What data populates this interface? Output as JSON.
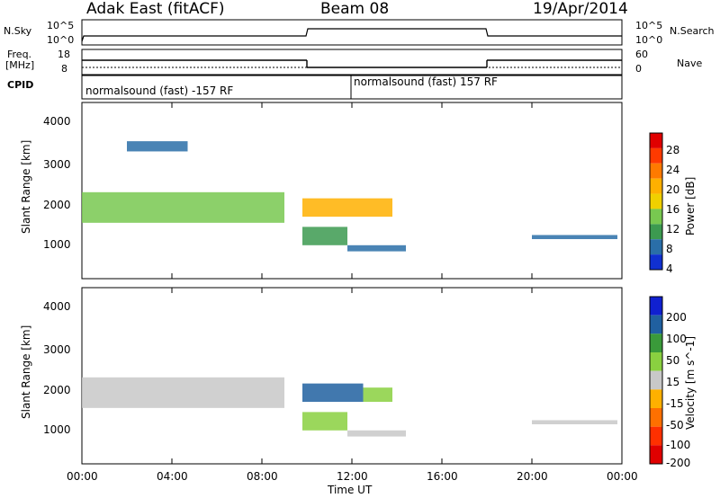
{
  "header": {
    "radar": "Adak East (fitACF)",
    "beam": "Beam 08",
    "date": "19/Apr/2014"
  },
  "top_panels": {
    "nsky_label": "N.Sky",
    "nsky_ticks": [
      "10^5",
      "10^0"
    ],
    "nsearch_label": "N.Search",
    "freq_label_1": "Freq.",
    "freq_label_2": "[MHz]",
    "freq_ticks": [
      "18",
      "8"
    ],
    "nave_label": "Nave",
    "nave_ticks": [
      "60",
      "0"
    ],
    "cpid_label": "CPID",
    "cpid_segment_1": "normalsound (fast) -157 RF",
    "cpid_segment_2": "normalsound (fast) 157 RF"
  },
  "axes": {
    "ylabel": "Slant Range [km]",
    "xlabel": "Time UT",
    "yticks": [
      "4000",
      "3000",
      "2000",
      "1000"
    ],
    "xticks": [
      "00:00",
      "04:00",
      "08:00",
      "12:00",
      "16:00",
      "20:00",
      "00:00"
    ]
  },
  "power_scale": {
    "label": "Power [dB]",
    "ticks": [
      "28",
      "24",
      "20",
      "16",
      "12",
      "8",
      "4"
    ],
    "colors": [
      "#e00000",
      "#ff3a00",
      "#ff7a00",
      "#ffb000",
      "#f0d000",
      "#78c850",
      "#3c9a50",
      "#2a6ea8",
      "#1030d0"
    ]
  },
  "velocity_scale": {
    "label": "Velocity [m s^-1]",
    "ticks": [
      "200",
      "100",
      "50",
      "15",
      "-15",
      "-50",
      "-100",
      "-200"
    ],
    "colors": [
      "#1020d0",
      "#2060a0",
      "#3a9a3a",
      "#8ad040",
      "#c8c8c8",
      "#ffb000",
      "#ff7000",
      "#ff3000",
      "#e00000"
    ]
  },
  "chart_data": {
    "type": "heatmap",
    "title": "Adak East (fitACF) Beam 08 19/Apr/2014",
    "xlabel": "Time UT",
    "ylabel": "Slant Range [km]",
    "xlim": [
      "00:00",
      "24:00"
    ],
    "ylim": [
      180,
      4500
    ],
    "panels": [
      {
        "name": "Power [dB]",
        "clim": [
          0,
          32
        ],
        "echo_bands": [
          {
            "t_start": 0.0,
            "t_end": 9.0,
            "range_km": [
              1550,
              2300
            ],
            "value": 14
          },
          {
            "t_start": 2.0,
            "t_end": 4.7,
            "range_km": [
              3300,
              3550
            ],
            "value": 6
          },
          {
            "t_start": 9.8,
            "t_end": 13.8,
            "range_km": [
              1700,
              2150
            ],
            "value": 20
          },
          {
            "t_start": 9.8,
            "t_end": 11.8,
            "range_km": [
              1000,
              1450
            ],
            "value": 8
          },
          {
            "t_start": 11.8,
            "t_end": 14.4,
            "range_km": [
              850,
              1000
            ],
            "value": 6
          },
          {
            "t_start": 20.0,
            "t_end": 23.8,
            "range_km": [
              1150,
              1250
            ],
            "value": 5
          }
        ]
      },
      {
        "name": "Velocity [m s^-1]",
        "clim": [
          -250,
          250
        ],
        "echo_bands": [
          {
            "t_start": 0.0,
            "t_end": 9.0,
            "range_km": [
              1550,
              2300
            ],
            "value": 0
          },
          {
            "t_start": 9.8,
            "t_end": 12.5,
            "range_km": [
              1700,
              2150
            ],
            "value": 200
          },
          {
            "t_start": 12.5,
            "t_end": 13.8,
            "range_km": [
              1700,
              2050
            ],
            "value": 60
          },
          {
            "t_start": 9.8,
            "t_end": 11.8,
            "range_km": [
              1000,
              1450
            ],
            "value": 40
          },
          {
            "t_start": 11.8,
            "t_end": 14.4,
            "range_km": [
              850,
              1000
            ],
            "value": 30
          },
          {
            "t_start": 20.0,
            "t_end": 23.8,
            "range_km": [
              1150,
              1250
            ],
            "value": 0
          }
        ]
      }
    ],
    "frequency_mhz": [
      {
        "t_start": 0.0,
        "t_end": 10.0,
        "value": 14
      },
      {
        "t_start": 10.0,
        "t_end": 18.0,
        "value": 10
      },
      {
        "t_start": 18.0,
        "t_end": 24.0,
        "value": 14
      }
    ]
  }
}
